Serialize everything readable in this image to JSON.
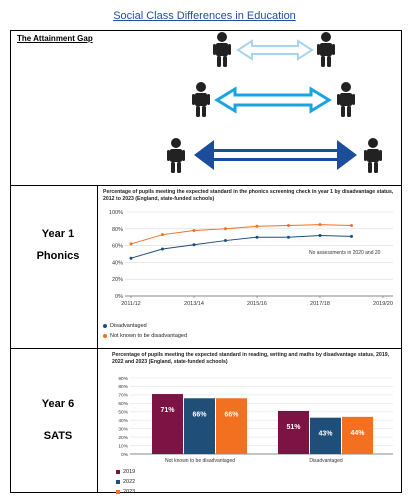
{
  "page_title": "Social Class Differences in Education",
  "attainment_gap_label": "The Attainment Gap",
  "row1_label_1": "Year 1",
  "row1_label_2": "Phonics",
  "row2_label_1": "Year 6",
  "row2_label_2": "SATS",
  "colors": {
    "title_blue": "#1f4e9c",
    "arrow_light": "#a9d3ef",
    "arrow_mid": "#1aa3e3",
    "arrow_dark": "#1b4d9b",
    "navy": "#1f4e79",
    "orange": "#f37021",
    "maroon": "#7d1245",
    "steel": "#1f4e79"
  },
  "chart_data": [
    {
      "type": "line",
      "title": "Percentage of pupils meeting the expected standard in the phonics screening check in year 1 by disadvantage status, 2012 to 2023 (England, state-funded schools)",
      "x": [
        "2011/12",
        "2012/13",
        "2013/14",
        "2014/15",
        "2015/16",
        "2016/17",
        "2017/18",
        "2018/19"
      ],
      "x_tick_labels": [
        "2011/12",
        "2013/14",
        "2015/16",
        "2017/18",
        "2019/20"
      ],
      "y_tick_labels": [
        "0%",
        "20%",
        "40%",
        "60%",
        "80%",
        "100%"
      ],
      "ylim": [
        0,
        100
      ],
      "series": [
        {
          "name": "Disadvantaged",
          "color": "#1f4e79",
          "values": [
            45,
            56,
            61,
            66,
            70,
            70,
            72,
            71
          ]
        },
        {
          "name": "Not known to be disadvantaged",
          "color": "#f37021",
          "values": [
            62,
            73,
            78,
            80,
            83,
            84,
            85,
            84
          ]
        }
      ],
      "annotation": "No assessments in 2020 and 20",
      "grid": true,
      "legend_placement": "bottom-left"
    },
    {
      "type": "bar",
      "title": "Percentage of pupils meeting the expected standard in reading, writing and maths by disadvantage status, 2019, 2022 and 2023 (England, state-funded schools)",
      "categories": [
        "Not known to be disadvantaged",
        "Disadvantaged"
      ],
      "y_tick_labels": [
        "0%",
        "10%",
        "20%",
        "30%",
        "40%",
        "50%",
        "60%",
        "70%",
        "80%",
        "90%"
      ],
      "ylim": [
        0,
        90
      ],
      "series": [
        {
          "name": "2019",
          "color": "#7d1245",
          "values": [
            71,
            51
          ],
          "labels": [
            "71%",
            "51%"
          ]
        },
        {
          "name": "2022",
          "color": "#1f4e79",
          "values": [
            66,
            43
          ],
          "labels": [
            "66%",
            "43%"
          ]
        },
        {
          "name": "2023",
          "color": "#f37021",
          "values": [
            66,
            44
          ],
          "labels": [
            "66%",
            "44%"
          ]
        }
      ],
      "grid": true,
      "legend_placement": "bottom-left"
    }
  ]
}
